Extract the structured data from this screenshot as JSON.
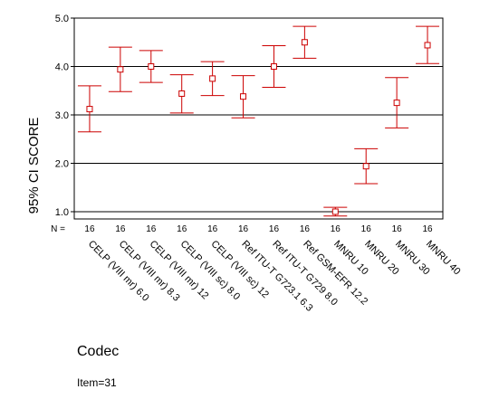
{
  "chart_data": {
    "type": "scatter",
    "subtype": "error-bar",
    "ylabel": "95% CI SCORE",
    "xlabel": "Codec",
    "footnote": "Item=31",
    "n_label": "N =",
    "ylim": [
      0.85,
      5.0
    ],
    "yticks": [
      "1.0",
      "2.0",
      "3.0",
      "4.0",
      "5.0"
    ],
    "grid": "horizontal lines at 2.0, 3.0, 4.0",
    "marker_color": "#cc0000",
    "categories": [
      "CELP (VIII mr) 6.0",
      "CELP (VIII mr) 8.3",
      "CELP (VIII mr) 12",
      "CELP (VIII sc) 8.0",
      "CELP (VIII sc) 12",
      "Ref ITU-T G723.1 6.3",
      "Ref ITU-T G729 8.0",
      "Ref GSM-EFR 12.2",
      "MNRU 10",
      "MNRU 20",
      "MNRU 30",
      "MNRU 40"
    ],
    "n": [
      "16",
      "16",
      "16",
      "16",
      "16",
      "16",
      "16",
      "16",
      "16",
      "16",
      "16",
      "16"
    ],
    "mean": [
      3.12,
      3.94,
      4.0,
      3.44,
      3.75,
      3.38,
      4.0,
      4.5,
      1.0,
      1.94,
      3.25,
      4.44
    ],
    "lower": [
      2.65,
      3.48,
      3.67,
      3.04,
      3.4,
      2.94,
      3.57,
      4.17,
      0.91,
      1.58,
      2.73,
      4.06
    ],
    "upper": [
      3.6,
      4.4,
      4.33,
      3.83,
      4.1,
      3.81,
      4.43,
      4.83,
      1.09,
      2.3,
      3.77,
      4.83
    ]
  }
}
